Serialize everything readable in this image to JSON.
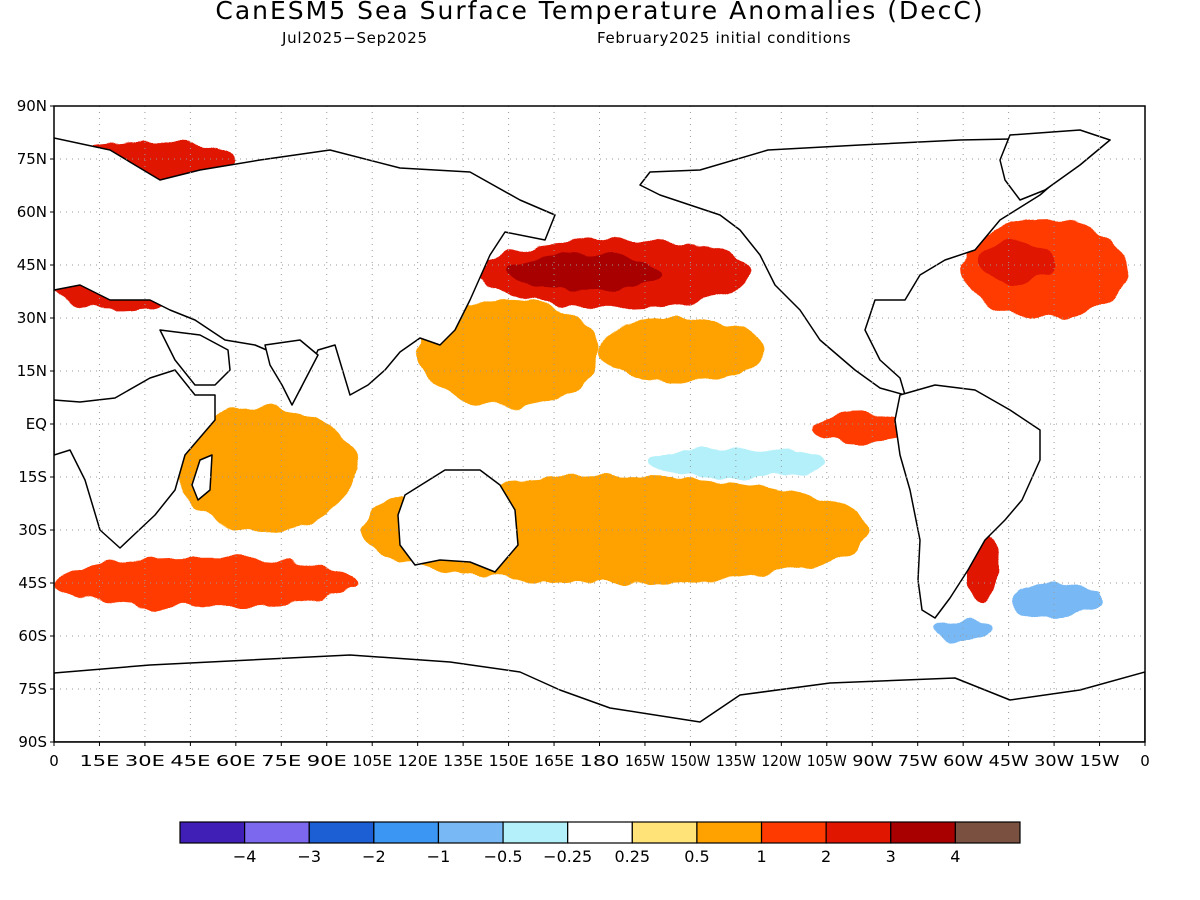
{
  "header": {
    "title": "CanESM5 Sea Surface Temperature Anomalies (DecC)",
    "period": "Jul2025−Sep2025",
    "init": "February2025 initial conditions"
  },
  "map": {
    "lat_ticks": [
      "90N",
      "75N",
      "60N",
      "45N",
      "30N",
      "15N",
      "EQ",
      "15S",
      "30S",
      "45S",
      "60S",
      "75S",
      "90S"
    ],
    "lon_ticks": [
      "0",
      "15E",
      "30E",
      "45E",
      "60E",
      "75E",
      "90E",
      "105E",
      "120E",
      "135E",
      "150E",
      "165E",
      "180",
      "165W",
      "150W",
      "135W",
      "120W",
      "105W",
      "90W",
      "75W",
      "60W",
      "45W",
      "30W",
      "15W",
      "0"
    ]
  },
  "colorbar": {
    "colors": [
      "#3f1fb5",
      "#7b68ee",
      "#1c5fd4",
      "#3a96f2",
      "#78b9f5",
      "#b4f0fa",
      "#ffffff",
      "#ffe278",
      "#ffa200",
      "#ff3a00",
      "#e01600",
      "#a80000",
      "#7a5040"
    ],
    "labels": [
      "−4",
      "−3",
      "−2",
      "−1",
      "−0.5",
      "−0.25",
      "0.25",
      "0.5",
      "1",
      "2",
      "3",
      "4"
    ]
  },
  "chart_data": {
    "type": "heatmap",
    "title": "CanESM5 Sea Surface Temperature Anomalies (DecC)",
    "variable": "Sea Surface Temperature Anomaly",
    "units": "DecC",
    "valid_period": "Jul2025−Sep2025",
    "initial_conditions": "February2025",
    "x_range_deg_east": [
      0,
      360
    ],
    "y_range_deg": [
      -90,
      90
    ],
    "contour_levels": [
      -4,
      -3,
      -2,
      -1,
      -0.5,
      -0.25,
      0.25,
      0.5,
      1,
      2,
      3,
      4
    ],
    "anomaly_regions": [
      {
        "lon": [
          140,
          230
        ],
        "lat": [
          33,
          52
        ],
        "value": 2.5
      },
      {
        "lon": [
          150,
          200
        ],
        "lat": [
          38,
          48
        ],
        "value": 3.2
      },
      {
        "lon": [
          300,
          355
        ],
        "lat": [
          30,
          58
        ],
        "value": 1.6
      },
      {
        "lon": [
          305,
          330
        ],
        "lat": [
          40,
          52
        ],
        "value": 2.5
      },
      {
        "lon": [
          0,
          60
        ],
        "lat": [
          68,
          80
        ],
        "value": 2.0
      },
      {
        "lon": [
          0,
          42
        ],
        "lat": [
          32,
          46
        ],
        "value": 2.2
      },
      {
        "lon": [
          120,
          180
        ],
        "lat": [
          5,
          35
        ],
        "value": 0.8
      },
      {
        "lon": [
          180,
          235
        ],
        "lat": [
          12,
          30
        ],
        "value": 0.6
      },
      {
        "lon": [
          40,
          100
        ],
        "lat": [
          -30,
          5
        ],
        "value": 0.6
      },
      {
        "lon": [
          100,
          270
        ],
        "lat": [
          -45,
          -15
        ],
        "value": 0.7
      },
      {
        "lon": [
          0,
          100
        ],
        "lat": [
          -52,
          -38
        ],
        "value": 1.2
      },
      {
        "lon": [
          250,
          285
        ],
        "lat": [
          -5,
          3
        ],
        "value": 1.5
      },
      {
        "lon": [
          195,
          255
        ],
        "lat": [
          -15,
          -7
        ],
        "value": -0.3
      },
      {
        "lon": [
          300,
          312
        ],
        "lat": [
          -50,
          -30
        ],
        "value": 2.4
      },
      {
        "lon": [
          290,
          310
        ],
        "lat": [
          -62,
          -55
        ],
        "value": -1.0
      },
      {
        "lon": [
          315,
          345
        ],
        "lat": [
          -55,
          -45
        ],
        "value": -0.8
      }
    ]
  }
}
